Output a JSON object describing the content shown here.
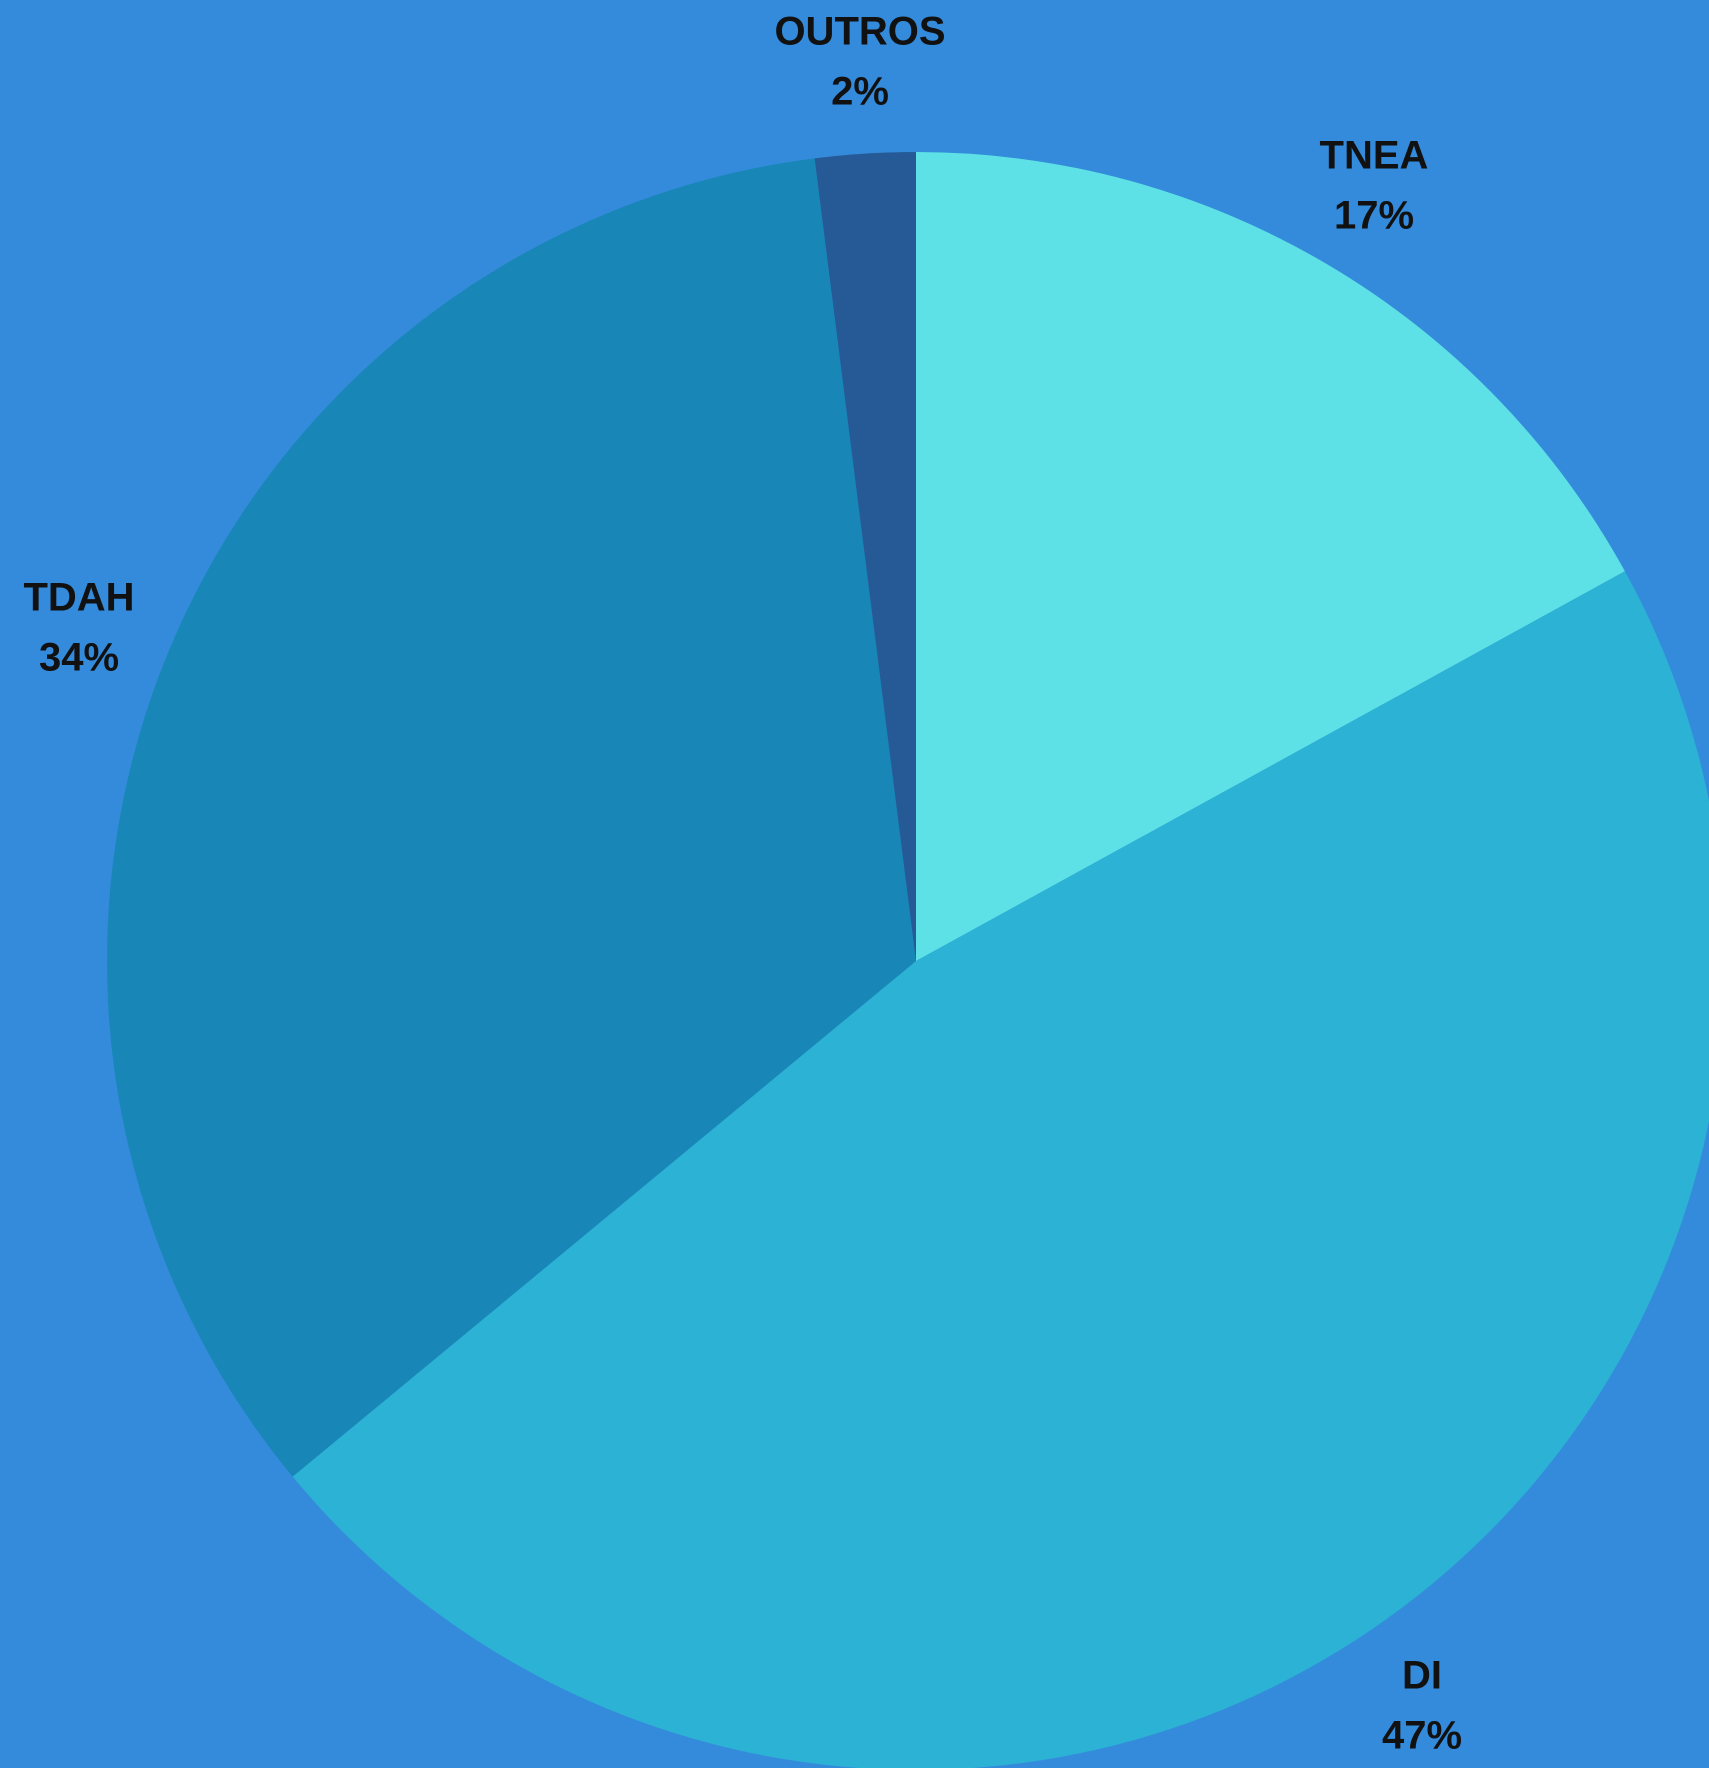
{
  "background_color": "#348bdb",
  "chart_data": {
    "type": "pie",
    "start_angle_deg": 0,
    "direction": "clockwise",
    "legend": "none",
    "slices": [
      {
        "label": "TNEA",
        "value": 17,
        "percent_label": "17%",
        "color": "#5de1e6"
      },
      {
        "label": "DI",
        "value": 47,
        "percent_label": "47%",
        "color": "#2bb2d4"
      },
      {
        "label": "TDAH",
        "value": 34,
        "percent_label": "34%",
        "color": "#1887b8"
      },
      {
        "label": "OUTROS",
        "value": 2,
        "percent_label": "2%",
        "color": "#255a96"
      }
    ]
  }
}
